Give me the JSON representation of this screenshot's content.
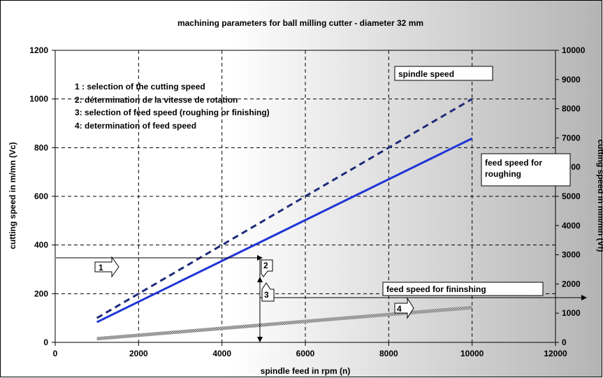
{
  "chart_data": {
    "type": "line",
    "title": "machining parameters for  ball milling cutter - diameter 32 mm",
    "xlabel": "spindle feed in rpm (n)",
    "ylabel": "cutting speed in m/mn (Vc)",
    "y2label": "cutting speed in mm/mn (Vf)",
    "xlim": [
      0,
      12000
    ],
    "ylim": [
      0,
      1200
    ],
    "y2lim": [
      0,
      10000
    ],
    "x_ticks": [
      "0",
      "2000",
      "4000",
      "6000",
      "8000",
      "10000",
      "12000"
    ],
    "y_ticks": [
      "0",
      "200",
      "400",
      "600",
      "800",
      "1000",
      "1200"
    ],
    "y2_ticks": [
      "0",
      "1000",
      "2000",
      "3000",
      "4000",
      "5000",
      "6000",
      "7000",
      "8000",
      "9000",
      "10000"
    ],
    "grid": true,
    "series": [
      {
        "name": "spindle speed",
        "style": "dashed",
        "color": "#1f2b7a",
        "axis": "left",
        "x": [
          1000,
          10000
        ],
        "y": [
          100,
          1000
        ]
      },
      {
        "name": "feed speed for\nroughing",
        "style": "solid",
        "color": "#1e35d6",
        "axis": "left",
        "x": [
          1000,
          10000
        ],
        "y": [
          83,
          838
        ]
      },
      {
        "name": "feed speed for fininshing",
        "style": "hatched",
        "color": "#8a8a8a",
        "axis": "left",
        "x": [
          1000,
          10000
        ],
        "y": [
          15,
          143
        ]
      }
    ],
    "legend_notes": [
      "1 : selection of the cutting speed",
      "2: détermination de la vitesse de rotation",
      "3: selection of feed speed (roughing or finishing)",
      "4: determination of feed speed"
    ],
    "steps": [
      "1",
      "2",
      "3",
      "4"
    ],
    "background_gradient": [
      "#ffffff",
      "#b4b4b4"
    ]
  }
}
